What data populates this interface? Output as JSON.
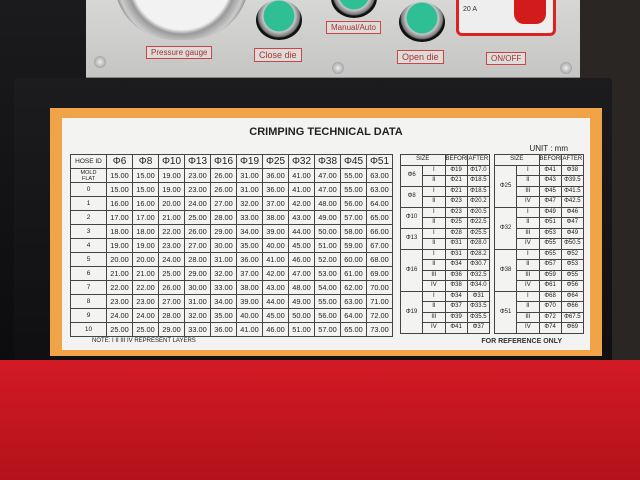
{
  "panel": {
    "labels": {
      "pressure": "Pressure gauge",
      "close": "Close die",
      "manual": "Manual/Auto",
      "open": "Open die",
      "onoff": "ON/OFF",
      "amp": "20 A"
    }
  },
  "label": {
    "title": "CRIMPING TECHNICAL DATA",
    "unit": "UNIT : mm",
    "note": "NOTE:  I II III IV  REPRESENT LAYERS",
    "reference": "FOR REFERENCE ONLY",
    "main_table": {
      "corner": [
        "HOSE ID",
        "MOLD",
        "FLAT"
      ],
      "columns": [
        "Φ6",
        "Φ8",
        "Φ10",
        "Φ13",
        "Φ16",
        "Φ19",
        "Φ25",
        "Φ32",
        "Φ38",
        "Φ45",
        "Φ51"
      ],
      "rows": [
        {
          "id": "",
          "values": [
            "15.00",
            "15.00",
            "19.00",
            "23.00",
            "26.00",
            "31.00",
            "36.00",
            "41.00",
            "47.00",
            "55.00",
            "63.00"
          ]
        },
        {
          "id": "0",
          "values": [
            "15.00",
            "15.00",
            "19.00",
            "23.00",
            "26.00",
            "31.00",
            "36.00",
            "41.00",
            "47.00",
            "55.00",
            "63.00"
          ]
        },
        {
          "id": "1",
          "values": [
            "16.00",
            "16.00",
            "20.00",
            "24.00",
            "27.00",
            "32.00",
            "37.00",
            "42.00",
            "48.00",
            "56.00",
            "64.00"
          ]
        },
        {
          "id": "2",
          "values": [
            "17.00",
            "17.00",
            "21.00",
            "25.00",
            "28.00",
            "33.00",
            "38.00",
            "43.00",
            "49.00",
            "57.00",
            "65.00"
          ]
        },
        {
          "id": "3",
          "values": [
            "18.00",
            "18.00",
            "22.00",
            "26.00",
            "29.00",
            "34.00",
            "39.00",
            "44.00",
            "50.00",
            "58.00",
            "66.00"
          ]
        },
        {
          "id": "4",
          "values": [
            "19.00",
            "19.00",
            "23.00",
            "27.00",
            "30.00",
            "35.00",
            "40.00",
            "45.00",
            "51.00",
            "59.00",
            "67.00"
          ]
        },
        {
          "id": "5",
          "values": [
            "20.00",
            "20.00",
            "24.00",
            "28.00",
            "31.00",
            "36.00",
            "41.00",
            "46.00",
            "52.00",
            "60.00",
            "68.00"
          ]
        },
        {
          "id": "6",
          "values": [
            "21.00",
            "21.00",
            "25.00",
            "29.00",
            "32.00",
            "37.00",
            "42.00",
            "47.00",
            "53.00",
            "61.00",
            "69.00"
          ]
        },
        {
          "id": "7",
          "values": [
            "22.00",
            "22.00",
            "26.00",
            "30.00",
            "33.00",
            "38.00",
            "43.00",
            "48.00",
            "54.00",
            "62.00",
            "70.00"
          ]
        },
        {
          "id": "8",
          "values": [
            "23.00",
            "23.00",
            "27.00",
            "31.00",
            "34.00",
            "39.00",
            "44.00",
            "49.00",
            "55.00",
            "63.00",
            "71.00"
          ]
        },
        {
          "id": "9",
          "values": [
            "24.00",
            "24.00",
            "28.00",
            "32.00",
            "35.00",
            "40.00",
            "45.00",
            "50.00",
            "56.00",
            "64.00",
            "72.00"
          ]
        },
        {
          "id": "10",
          "values": [
            "25.00",
            "25.00",
            "29.00",
            "33.00",
            "36.00",
            "41.00",
            "46.00",
            "51.00",
            "57.00",
            "65.00",
            "73.00"
          ]
        }
      ]
    },
    "side_header": [
      "SIZE",
      "BEFORE",
      "AFTER"
    ],
    "side_left": [
      {
        "size": "Φ6",
        "layers": [
          [
            "I",
            "Φ19",
            "Φ17.0"
          ],
          [
            "II",
            "Φ21",
            "Φ18.5"
          ]
        ]
      },
      {
        "size": "Φ8",
        "layers": [
          [
            "I",
            "Φ21",
            "Φ18.5"
          ],
          [
            "II",
            "Φ23",
            "Φ20.2"
          ]
        ]
      },
      {
        "size": "Φ10",
        "layers": [
          [
            "I",
            "Φ23",
            "Φ20.5"
          ],
          [
            "II",
            "Φ25",
            "Φ22.5"
          ]
        ]
      },
      {
        "size": "Φ13",
        "layers": [
          [
            "I",
            "Φ28",
            "Φ25.5"
          ],
          [
            "II",
            "Φ31",
            "Φ28.0"
          ]
        ]
      },
      {
        "size": "Φ16",
        "layers": [
          [
            "I",
            "Φ31",
            "Φ28.2"
          ],
          [
            "II",
            "Φ34",
            "Φ30.7"
          ],
          [
            "III",
            "Φ36",
            "Φ32.5"
          ],
          [
            "IV",
            "Φ38",
            "Φ34.0"
          ]
        ]
      },
      {
        "size": "Φ19",
        "layers": [
          [
            "I",
            "Φ34",
            "Φ31"
          ],
          [
            "II",
            "Φ37",
            "Φ33.5"
          ],
          [
            "III",
            "Φ39",
            "Φ35.5"
          ],
          [
            "IV",
            "Φ41",
            "Φ37"
          ]
        ]
      }
    ],
    "side_right": [
      {
        "size": "Φ25",
        "layers": [
          [
            "I",
            "Φ41",
            "Φ38"
          ],
          [
            "II",
            "Φ43",
            "Φ39.5"
          ],
          [
            "III",
            "Φ45",
            "Φ41.5"
          ],
          [
            "IV",
            "Φ47",
            "Φ42.5"
          ]
        ]
      },
      {
        "size": "Φ32",
        "layers": [
          [
            "I",
            "Φ49",
            "Φ46"
          ],
          [
            "II",
            "Φ51",
            "Φ47"
          ],
          [
            "III",
            "Φ53",
            "Φ49"
          ],
          [
            "IV",
            "Φ55",
            "Φ50.5"
          ]
        ]
      },
      {
        "size": "Φ38",
        "layers": [
          [
            "I",
            "Φ55",
            "Φ52"
          ],
          [
            "II",
            "Φ57",
            "Φ53"
          ],
          [
            "III",
            "Φ59",
            "Φ55"
          ],
          [
            "IV",
            "Φ61",
            "Φ56"
          ]
        ]
      },
      {
        "size": "Φ51",
        "layers": [
          [
            "I",
            "Φ68",
            "Φ64"
          ],
          [
            "II",
            "Φ70",
            "Φ66"
          ],
          [
            "III",
            "Φ72",
            "Φ67.5"
          ],
          [
            "IV",
            "Φ74",
            "Φ69"
          ]
        ]
      }
    ]
  }
}
